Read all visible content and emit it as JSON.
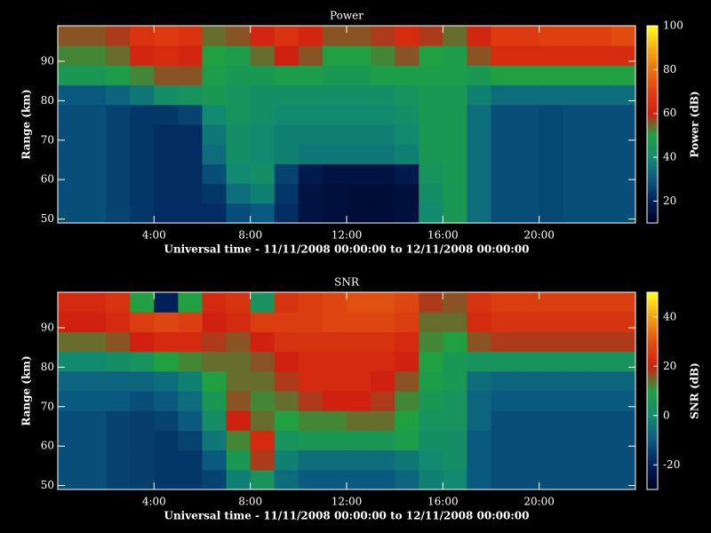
{
  "chart_data": [
    {
      "type": "heatmap",
      "title": "Power",
      "xlabel": "Universal time - 11/11/2008 00:00:00 to 12/11/2008 00:00:00",
      "ylabel": "Range (km)",
      "colorbar_label": "Power (dB)",
      "x": [
        0.5,
        1.5,
        2.5,
        3.5,
        4.5,
        5.5,
        6.5,
        7.5,
        8.5,
        9.5,
        10.5,
        11.5,
        12.5,
        13.5,
        14.5,
        15.5,
        16.5,
        17.5,
        18.5,
        19.5,
        20.5,
        21.5,
        22.5,
        23.5
      ],
      "y": [
        51.5,
        56.5,
        61.5,
        66.5,
        71.5,
        76.5,
        81.5,
        86.5,
        91.5,
        96.5
      ],
      "z": [
        [
          28,
          28,
          26,
          24,
          22,
          22,
          22,
          28,
          30,
          22,
          16,
          15,
          14,
          14,
          15,
          40,
          46,
          34,
          28,
          28,
          27,
          28,
          28,
          28
        ],
        [
          28,
          28,
          26,
          24,
          22,
          22,
          24,
          34,
          38,
          24,
          16,
          15,
          14,
          14,
          15,
          42,
          46,
          34,
          28,
          28,
          27,
          28,
          28,
          28
        ],
        [
          28,
          28,
          26,
          24,
          22,
          22,
          28,
          40,
          42,
          26,
          18,
          16,
          16,
          16,
          18,
          44,
          46,
          34,
          28,
          28,
          27,
          28,
          28,
          28
        ],
        [
          28,
          28,
          26,
          24,
          22,
          22,
          34,
          42,
          40,
          38,
          36,
          36,
          36,
          36,
          38,
          46,
          46,
          34,
          28,
          28,
          27,
          28,
          28,
          28
        ],
        [
          28,
          28,
          26,
          24,
          22,
          22,
          36,
          42,
          40,
          38,
          38,
          38,
          38,
          38,
          40,
          46,
          46,
          34,
          28,
          28,
          27,
          28,
          28,
          28
        ],
        [
          28,
          28,
          26,
          24,
          24,
          26,
          40,
          44,
          42,
          40,
          40,
          40,
          40,
          40,
          42,
          46,
          46,
          34,
          28,
          28,
          27,
          28,
          28,
          28
        ],
        [
          30,
          30,
          32,
          36,
          42,
          44,
          46,
          44,
          42,
          42,
          42,
          42,
          42,
          42,
          44,
          46,
          46,
          38,
          34,
          34,
          34,
          34,
          34,
          34
        ],
        [
          46,
          46,
          48,
          52,
          56,
          56,
          48,
          46,
          46,
          48,
          48,
          46,
          46,
          48,
          48,
          48,
          48,
          46,
          50,
          50,
          50,
          50,
          50,
          50
        ],
        [
          52,
          52,
          54,
          62,
          64,
          62,
          50,
          48,
          54,
          60,
          56,
          50,
          50,
          52,
          56,
          50,
          48,
          56,
          64,
          64,
          64,
          64,
          64,
          64
        ],
        [
          56,
          56,
          58,
          66,
          68,
          66,
          54,
          56,
          62,
          66,
          62,
          56,
          56,
          58,
          64,
          58,
          54,
          62,
          68,
          68,
          70,
          70,
          70,
          72
        ]
      ],
      "xlim": [
        0,
        24
      ],
      "ylim": [
        49,
        99
      ],
      "xticks": [
        {
          "value": 4,
          "label": "4:00"
        },
        {
          "value": 8,
          "label": "8:00"
        },
        {
          "value": 12,
          "label": "12:00"
        },
        {
          "value": 16,
          "label": "16:00"
        },
        {
          "value": 20,
          "label": "20:00"
        }
      ],
      "yticks": [
        50,
        60,
        70,
        80,
        90
      ],
      "clim": [
        10,
        100
      ],
      "cticks": [
        20,
        40,
        60,
        80,
        100
      ],
      "colorscale": [
        "#000020",
        "#00205a",
        "#0a5a80",
        "#128a70",
        "#20a040",
        "#d02010",
        "#e04010",
        "#f07010",
        "#f8b010",
        "#ffff20"
      ]
    },
    {
      "type": "heatmap",
      "title": "SNR",
      "xlabel": "Universal time - 11/11/2008 00:00:00 to 12/11/2008 00:00:00",
      "ylabel": "Range (km)",
      "colorbar_label": "SNR (dB)",
      "x": [
        0.5,
        1.5,
        2.5,
        3.5,
        4.5,
        5.5,
        6.5,
        7.5,
        8.5,
        9.5,
        10.5,
        11.5,
        12.5,
        13.5,
        14.5,
        15.5,
        16.5,
        17.5,
        18.5,
        19.5,
        20.5,
        21.5,
        22.5,
        23.5
      ],
      "y": [
        51.5,
        56.5,
        61.5,
        66.5,
        71.5,
        76.5,
        81.5,
        86.5,
        91.5,
        96.5
      ],
      "z": [
        [
          -12,
          -12,
          -14,
          -15,
          -16,
          -16,
          -14,
          -2,
          4,
          -6,
          -10,
          -10,
          -10,
          -10,
          -8,
          -2,
          0,
          -10,
          -12,
          -12,
          -12,
          -12,
          -12,
          -12
        ],
        [
          -12,
          -12,
          -14,
          -15,
          -16,
          -16,
          -10,
          6,
          18,
          -2,
          -6,
          -6,
          -6,
          -6,
          -4,
          0,
          2,
          -10,
          -12,
          -12,
          -12,
          -12,
          -12,
          -12
        ],
        [
          -12,
          -12,
          -14,
          -15,
          -16,
          -14,
          -4,
          12,
          22,
          4,
          6,
          6,
          6,
          6,
          8,
          2,
          2,
          -10,
          -12,
          -12,
          -12,
          -12,
          -12,
          -12
        ],
        [
          -12,
          -12,
          -14,
          -15,
          -14,
          -10,
          2,
          20,
          14,
          10,
          12,
          12,
          14,
          14,
          10,
          4,
          4,
          -8,
          -12,
          -12,
          -12,
          -12,
          -12,
          -12
        ],
        [
          -10,
          -10,
          -10,
          -12,
          -10,
          -6,
          6,
          16,
          12,
          14,
          18,
          20,
          20,
          18,
          12,
          6,
          4,
          -8,
          -10,
          -10,
          -10,
          -10,
          -10,
          -10
        ],
        [
          -8,
          -8,
          -8,
          -8,
          -6,
          -2,
          10,
          14,
          14,
          18,
          22,
          22,
          22,
          20,
          16,
          8,
          6,
          -6,
          -8,
          -8,
          -8,
          -8,
          -8,
          -8
        ],
        [
          0,
          0,
          2,
          4,
          10,
          12,
          14,
          14,
          16,
          20,
          22,
          22,
          22,
          22,
          20,
          10,
          6,
          4,
          4,
          4,
          4,
          4,
          4,
          4
        ],
        [
          14,
          14,
          16,
          20,
          22,
          22,
          18,
          16,
          20,
          24,
          24,
          24,
          24,
          24,
          22,
          12,
          10,
          16,
          18,
          18,
          18,
          18,
          18,
          18
        ],
        [
          20,
          20,
          22,
          26,
          28,
          26,
          20,
          22,
          26,
          26,
          26,
          28,
          28,
          28,
          26,
          14,
          14,
          22,
          24,
          24,
          24,
          24,
          24,
          24
        ],
        [
          22,
          22,
          24,
          10,
          -20,
          10,
          22,
          24,
          4,
          24,
          26,
          28,
          30,
          30,
          28,
          18,
          16,
          24,
          26,
          26,
          26,
          26,
          26,
          26
        ]
      ],
      "xlim": [
        0,
        24
      ],
      "ylim": [
        49,
        99
      ],
      "xticks": [
        {
          "value": 4,
          "label": "4:00"
        },
        {
          "value": 8,
          "label": "8:00"
        },
        {
          "value": 12,
          "label": "12:00"
        },
        {
          "value": 16,
          "label": "16:00"
        },
        {
          "value": 20,
          "label": "20:00"
        }
      ],
      "yticks": [
        50,
        60,
        70,
        80,
        90
      ],
      "clim": [
        -30,
        50
      ],
      "cticks": [
        -20,
        0,
        20,
        40
      ],
      "colorscale": [
        "#000020",
        "#00205a",
        "#0a5a80",
        "#128a70",
        "#20a040",
        "#d02010",
        "#e05010",
        "#f8a010",
        "#ffff20"
      ]
    }
  ]
}
